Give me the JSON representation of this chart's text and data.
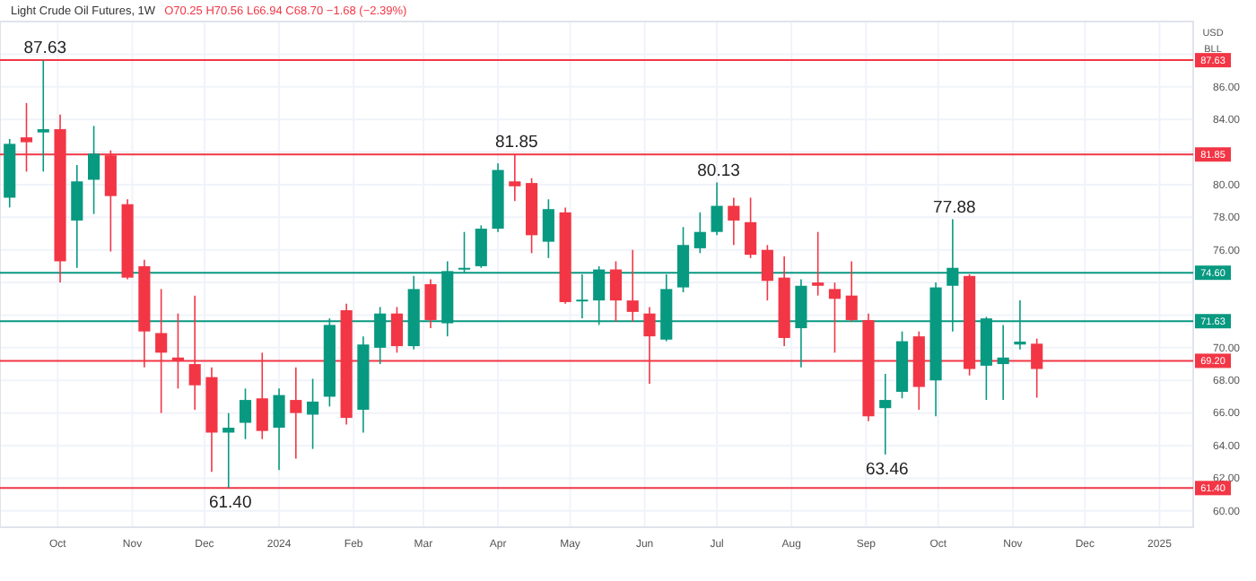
{
  "chart_data": {
    "type": "candlestick",
    "title": "Light Crude Oil Futures, 1W",
    "subtitle": "O70.25 H70.56 L66.94 C68.70 −1.68 (−2.39%)",
    "x": [
      "2023-09-11",
      "2023-09-18",
      "2023-09-25",
      "2023-10-02",
      "2023-10-09",
      "2023-10-16",
      "2023-10-23",
      "2023-10-30",
      "2023-11-06",
      "2023-11-13",
      "2023-11-20",
      "2023-11-27",
      "2023-12-04",
      "2023-12-11",
      "2023-12-18",
      "2023-12-25",
      "2024-01-01",
      "2024-01-08",
      "2024-01-15",
      "2024-01-22",
      "2024-01-29",
      "2024-02-05",
      "2024-02-12",
      "2024-02-19",
      "2024-02-26",
      "2024-03-04",
      "2024-03-11",
      "2024-03-18",
      "2024-03-25",
      "2024-04-01",
      "2024-04-08",
      "2024-04-15",
      "2024-04-22",
      "2024-04-29",
      "2024-05-06",
      "2024-05-13",
      "2024-05-20",
      "2024-05-27",
      "2024-06-03",
      "2024-06-10",
      "2024-06-17",
      "2024-06-24",
      "2024-07-01",
      "2024-07-08",
      "2024-07-15",
      "2024-07-22",
      "2024-07-29",
      "2024-08-05",
      "2024-08-12",
      "2024-08-19",
      "2024-08-26",
      "2024-09-02",
      "2024-09-09",
      "2024-09-16",
      "2024-09-23",
      "2024-09-30",
      "2024-10-07",
      "2024-10-14",
      "2024-10-21",
      "2024-10-28",
      "2024-11-04",
      "2024-11-11"
    ],
    "ohlc": [
      [
        79.2,
        82.8,
        78.6,
        82.5
      ],
      [
        82.9,
        85.0,
        80.8,
        82.6
      ],
      [
        83.2,
        87.63,
        80.8,
        83.4
      ],
      [
        83.4,
        84.3,
        74.0,
        75.3
      ],
      [
        77.8,
        81.2,
        74.9,
        80.2
      ],
      [
        80.3,
        83.6,
        78.2,
        81.9
      ],
      [
        81.8,
        82.1,
        75.9,
        79.3
      ],
      [
        78.8,
        79.1,
        74.2,
        74.3
      ],
      [
        75.0,
        75.4,
        68.8,
        71.0
      ],
      [
        70.9,
        73.6,
        66.0,
        69.7
      ],
      [
        69.4,
        72.1,
        67.5,
        69.2
      ],
      [
        69.0,
        73.2,
        66.2,
        67.7
      ],
      [
        68.2,
        68.8,
        62.4,
        64.8
      ],
      [
        64.8,
        66.0,
        61.4,
        65.1
      ],
      [
        65.4,
        67.5,
        64.4,
        66.8
      ],
      [
        66.9,
        69.7,
        64.4,
        64.9
      ],
      [
        65.1,
        67.5,
        62.5,
        67.1
      ],
      [
        66.8,
        68.8,
        63.2,
        66.0
      ],
      [
        65.9,
        68.1,
        63.8,
        66.7
      ],
      [
        67.0,
        71.8,
        66.4,
        71.4
      ],
      [
        72.3,
        72.7,
        65.3,
        65.7
      ],
      [
        66.2,
        70.7,
        64.8,
        70.2
      ],
      [
        70.0,
        72.5,
        69.0,
        72.1
      ],
      [
        72.1,
        72.5,
        69.7,
        70.1
      ],
      [
        70.1,
        74.4,
        69.9,
        73.6
      ],
      [
        73.9,
        74.2,
        71.2,
        71.7
      ],
      [
        71.5,
        75.3,
        70.7,
        74.7
      ],
      [
        74.8,
        77.1,
        74.6,
        74.9
      ],
      [
        75.0,
        77.5,
        74.9,
        77.3
      ],
      [
        77.3,
        81.3,
        77.1,
        80.9
      ],
      [
        80.2,
        81.85,
        79.0,
        79.9
      ],
      [
        80.1,
        80.4,
        75.8,
        76.9
      ],
      [
        76.5,
        79.1,
        75.5,
        78.5
      ],
      [
        78.3,
        78.6,
        72.7,
        72.8
      ],
      [
        72.85,
        74.5,
        71.8,
        72.95
      ],
      [
        72.9,
        75.0,
        71.4,
        74.8
      ],
      [
        74.8,
        75.3,
        71.6,
        72.9
      ],
      [
        72.9,
        76.0,
        71.6,
        72.2
      ],
      [
        72.1,
        72.5,
        67.8,
        70.7
      ],
      [
        70.5,
        74.5,
        70.4,
        73.6
      ],
      [
        73.7,
        77.4,
        73.4,
        76.3
      ],
      [
        76.1,
        78.3,
        75.8,
        77.1
      ],
      [
        77.1,
        80.13,
        76.9,
        78.7
      ],
      [
        78.7,
        79.2,
        76.3,
        77.8
      ],
      [
        77.7,
        79.2,
        75.5,
        75.7
      ],
      [
        76.0,
        76.3,
        72.9,
        74.1
      ],
      [
        74.3,
        75.6,
        70.1,
        70.6
      ],
      [
        71.2,
        74.2,
        68.8,
        73.8
      ],
      [
        74.0,
        77.1,
        73.2,
        73.8
      ],
      [
        73.6,
        74.0,
        69.7,
        73.0
      ],
      [
        73.2,
        75.3,
        71.6,
        71.7
      ],
      [
        71.7,
        72.1,
        65.5,
        65.8
      ],
      [
        66.3,
        68.4,
        63.46,
        66.8
      ],
      [
        67.3,
        71.0,
        66.9,
        70.4
      ],
      [
        70.7,
        71.0,
        66.2,
        67.6
      ],
      [
        68.0,
        74.0,
        65.8,
        73.7
      ],
      [
        73.8,
        77.88,
        71.0,
        74.9
      ],
      [
        74.4,
        74.5,
        68.3,
        68.7
      ],
      [
        68.9,
        71.9,
        66.8,
        71.8
      ],
      [
        69.0,
        71.4,
        66.8,
        69.4
      ],
      [
        70.2,
        72.9,
        69.9,
        70.38
      ],
      [
        70.25,
        70.56,
        66.94,
        68.7
      ]
    ],
    "colors": [
      "#089981",
      "#f23645",
      "#089981",
      "#f23645",
      "#089981",
      "#089981",
      "#f23645",
      "#f23645",
      "#f23645",
      "#f23645",
      "#f23645",
      "#f23645",
      "#f23645",
      "#089981",
      "#089981",
      "#f23645",
      "#089981",
      "#f23645",
      "#089981",
      "#089981",
      "#f23645",
      "#089981",
      "#089981",
      "#f23645",
      "#089981",
      "#f23645",
      "#089981",
      "#089981",
      "#089981",
      "#089981",
      "#f23645",
      "#f23645",
      "#089981",
      "#f23645",
      "#089981",
      "#089981",
      "#f23645",
      "#f23645",
      "#f23645",
      "#089981",
      "#089981",
      "#089981",
      "#089981",
      "#f23645",
      "#f23645",
      "#f23645",
      "#f23645",
      "#089981",
      "#f23645",
      "#f23645",
      "#f23645",
      "#f23645",
      "#089981",
      "#089981",
      "#f23645",
      "#089981",
      "#089981",
      "#f23645",
      "#089981",
      "#089981",
      "#089981",
      "#f23645"
    ],
    "xlim": [
      "2023-09-07",
      "2025-01-15"
    ],
    "xticks": [
      {
        "value": "2023-10-01",
        "label": "Oct"
      },
      {
        "value": "2023-11-01",
        "label": "Nov"
      },
      {
        "value": "2023-12-01",
        "label": "Dec"
      },
      {
        "value": "2024-01-01",
        "label": "2024"
      },
      {
        "value": "2024-02-01",
        "label": "Feb"
      },
      {
        "value": "2024-03-01",
        "label": "Mar"
      },
      {
        "value": "2024-04-01",
        "label": "Apr"
      },
      {
        "value": "2024-05-01",
        "label": "May"
      },
      {
        "value": "2024-06-01",
        "label": "Jun"
      },
      {
        "value": "2024-07-01",
        "label": "Jul"
      },
      {
        "value": "2024-08-01",
        "label": "Aug"
      },
      {
        "value": "2024-09-01",
        "label": "Sep"
      },
      {
        "value": "2024-10-01",
        "label": "Oct"
      },
      {
        "value": "2024-11-01",
        "label": "Nov"
      },
      {
        "value": "2024-12-01",
        "label": "Dec"
      },
      {
        "value": "2025-01-01",
        "label": "2025"
      }
    ],
    "ylim": [
      59,
      90
    ],
    "yticks": [
      {
        "value": 60,
        "label": "60.00"
      },
      {
        "value": 62,
        "label": "62.00"
      },
      {
        "value": 64,
        "label": "64.00"
      },
      {
        "value": 66,
        "label": "66.00"
      },
      {
        "value": 68,
        "label": "68.00"
      },
      {
        "value": 70,
        "label": "70.00"
      },
      {
        "value": 72,
        "label": null
      },
      {
        "value": 74,
        "label": null
      },
      {
        "value": 76,
        "label": "76.00"
      },
      {
        "value": 78,
        "label": "78.00"
      },
      {
        "value": 80,
        "label": "80.00"
      },
      {
        "value": 82,
        "label": null
      },
      {
        "value": 84,
        "label": "84.00"
      },
      {
        "value": 86,
        "label": "86.00"
      },
      {
        "value": 88,
        "label": null
      }
    ],
    "grid": true,
    "ref_lines": [
      {
        "axis": "y",
        "value": 87.63,
        "label": "87.63",
        "color": "#f23645"
      },
      {
        "axis": "y",
        "value": 81.85,
        "label": "81.85",
        "color": "#f23645"
      },
      {
        "axis": "y",
        "value": 74.6,
        "label": "74.60",
        "color": "#089981"
      },
      {
        "axis": "y",
        "value": 71.63,
        "label": "71.63",
        "color": "#089981"
      },
      {
        "axis": "y",
        "value": 69.2,
        "label": "69.20",
        "color": "#f23645"
      },
      {
        "axis": "y",
        "value": 61.4,
        "label": "61.40",
        "color": "#f23645"
      }
    ],
    "annotations": [
      {
        "text": "87.63",
        "x": "2023-09-25",
        "y": 87.63
      },
      {
        "text": "61.40",
        "x": "2023-12-11",
        "y": 61.4
      },
      {
        "text": "81.85",
        "x": "2024-04-08",
        "y": 81.85
      },
      {
        "text": "80.13",
        "x": "2024-07-01",
        "y": 80.13
      },
      {
        "text": "77.88",
        "x": "2024-10-07",
        "y": 77.88
      },
      {
        "text": "63.46",
        "x": "2024-09-09",
        "y": 63.46
      },
      "USD",
      "BLL"
    ]
  }
}
